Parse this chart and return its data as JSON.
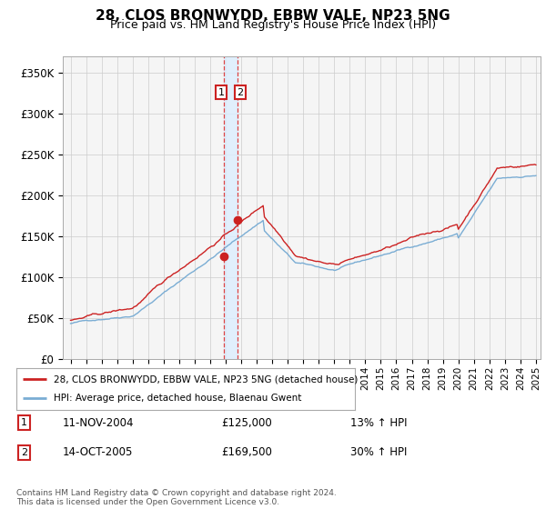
{
  "title": "28, CLOS BRONWYDD, EBBW VALE, NP23 5NG",
  "subtitle": "Price paid vs. HM Land Registry's House Price Index (HPI)",
  "legend_line1": "28, CLOS BRONWYDD, EBBW VALE, NP23 5NG (detached house)",
  "legend_line2": "HPI: Average price, detached house, Blaenau Gwent",
  "transaction1_date": "11-NOV-2004",
  "transaction1_price": "£125,000",
  "transaction1_hpi": "13% ↑ HPI",
  "transaction1_year": 2004.87,
  "transaction1_value": 125000,
  "transaction2_date": "14-OCT-2005",
  "transaction2_price": "£169,500",
  "transaction2_hpi": "30% ↑ HPI",
  "transaction2_year": 2005.79,
  "transaction2_value": 169500,
  "vline_color": "#dd4444",
  "band_color": "#ddeeff",
  "hpi_color": "#7aadd4",
  "price_color": "#cc2222",
  "marker_color": "#cc2222",
  "footer": "Contains HM Land Registry data © Crown copyright and database right 2024.\nThis data is licensed under the Open Government Licence v3.0.",
  "ylim": [
    0,
    370000
  ],
  "yticks": [
    0,
    50000,
    100000,
    150000,
    200000,
    250000,
    300000,
    350000
  ],
  "background_color": "#f5f5f5",
  "grid_color": "#cccccc"
}
